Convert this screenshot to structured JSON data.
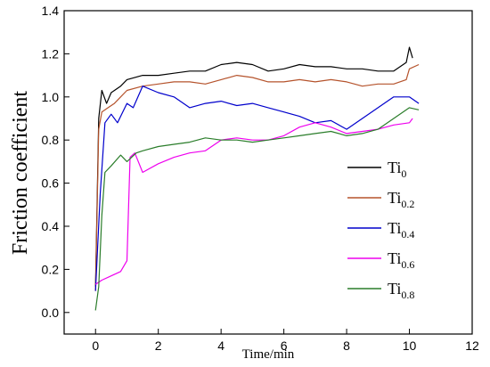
{
  "chart_data": {
    "type": "line",
    "xlabel": "Time/min",
    "ylabel": "Friction coefficient",
    "xlim": [
      -1,
      12
    ],
    "ylim": [
      -0.1,
      1.4
    ],
    "xticks": [
      0,
      2,
      4,
      6,
      8,
      10,
      12
    ],
    "yticks": [
      0.0,
      0.2,
      0.4,
      0.6,
      0.8,
      1.0,
      1.2,
      1.4
    ],
    "grid": false,
    "legend_position": "right",
    "series": [
      {
        "name": "Ti",
        "subscript": "0",
        "color": "#000000",
        "points": [
          [
            0,
            0.12
          ],
          [
            0.1,
            0.9
          ],
          [
            0.2,
            1.03
          ],
          [
            0.35,
            0.97
          ],
          [
            0.5,
            1.02
          ],
          [
            0.8,
            1.05
          ],
          [
            1.0,
            1.08
          ],
          [
            1.5,
            1.1
          ],
          [
            2.0,
            1.1
          ],
          [
            2.5,
            1.11
          ],
          [
            3.0,
            1.12
          ],
          [
            3.5,
            1.12
          ],
          [
            4.0,
            1.15
          ],
          [
            4.5,
            1.16
          ],
          [
            5.0,
            1.15
          ],
          [
            5.5,
            1.12
          ],
          [
            6.0,
            1.13
          ],
          [
            6.5,
            1.15
          ],
          [
            7.0,
            1.14
          ],
          [
            7.5,
            1.14
          ],
          [
            8.0,
            1.13
          ],
          [
            8.5,
            1.13
          ],
          [
            9.0,
            1.12
          ],
          [
            9.5,
            1.12
          ],
          [
            9.9,
            1.16
          ],
          [
            10.0,
            1.23
          ],
          [
            10.1,
            1.18
          ]
        ]
      },
      {
        "name": "Ti",
        "subscript": "0.2",
        "color": "#b5532c",
        "points": [
          [
            0,
            0.1
          ],
          [
            0.1,
            0.85
          ],
          [
            0.2,
            0.93
          ],
          [
            0.4,
            0.95
          ],
          [
            0.6,
            0.97
          ],
          [
            0.8,
            1.0
          ],
          [
            1.0,
            1.03
          ],
          [
            1.5,
            1.05
          ],
          [
            2.0,
            1.06
          ],
          [
            2.5,
            1.07
          ],
          [
            3.0,
            1.07
          ],
          [
            3.5,
            1.06
          ],
          [
            4.0,
            1.08
          ],
          [
            4.5,
            1.1
          ],
          [
            5.0,
            1.09
          ],
          [
            5.5,
            1.07
          ],
          [
            6.0,
            1.07
          ],
          [
            6.5,
            1.08
          ],
          [
            7.0,
            1.07
          ],
          [
            7.5,
            1.08
          ],
          [
            8.0,
            1.07
          ],
          [
            8.5,
            1.05
          ],
          [
            9.0,
            1.06
          ],
          [
            9.5,
            1.06
          ],
          [
            9.9,
            1.08
          ],
          [
            10.0,
            1.13
          ],
          [
            10.3,
            1.15
          ]
        ]
      },
      {
        "name": "Ti",
        "subscript": "0.4",
        "color": "#0000cc",
        "points": [
          [
            0,
            0.1
          ],
          [
            0.15,
            0.55
          ],
          [
            0.3,
            0.88
          ],
          [
            0.5,
            0.92
          ],
          [
            0.7,
            0.88
          ],
          [
            1.0,
            0.97
          ],
          [
            1.2,
            0.95
          ],
          [
            1.5,
            1.05
          ],
          [
            2.0,
            1.02
          ],
          [
            2.5,
            1.0
          ],
          [
            3.0,
            0.95
          ],
          [
            3.5,
            0.97
          ],
          [
            4.0,
            0.98
          ],
          [
            4.5,
            0.96
          ],
          [
            5.0,
            0.97
          ],
          [
            5.5,
            0.95
          ],
          [
            6.0,
            0.93
          ],
          [
            6.5,
            0.91
          ],
          [
            7.0,
            0.88
          ],
          [
            7.5,
            0.89
          ],
          [
            8.0,
            0.85
          ],
          [
            8.5,
            0.9
          ],
          [
            9.0,
            0.95
          ],
          [
            9.5,
            1.0
          ],
          [
            10.0,
            1.0
          ],
          [
            10.3,
            0.97
          ]
        ]
      },
      {
        "name": "Ti",
        "subscript": "0.6",
        "color": "#ee00ee",
        "points": [
          [
            0,
            0.13
          ],
          [
            0.2,
            0.15
          ],
          [
            0.5,
            0.17
          ],
          [
            0.8,
            0.19
          ],
          [
            1.0,
            0.24
          ],
          [
            1.1,
            0.72
          ],
          [
            1.25,
            0.74
          ],
          [
            1.5,
            0.65
          ],
          [
            2.0,
            0.69
          ],
          [
            2.5,
            0.72
          ],
          [
            3.0,
            0.74
          ],
          [
            3.5,
            0.75
          ],
          [
            4.0,
            0.8
          ],
          [
            4.5,
            0.81
          ],
          [
            5.0,
            0.8
          ],
          [
            5.5,
            0.8
          ],
          [
            6.0,
            0.82
          ],
          [
            6.5,
            0.86
          ],
          [
            7.0,
            0.88
          ],
          [
            7.5,
            0.86
          ],
          [
            8.0,
            0.83
          ],
          [
            8.5,
            0.84
          ],
          [
            9.0,
            0.85
          ],
          [
            9.5,
            0.87
          ],
          [
            10.0,
            0.88
          ],
          [
            10.1,
            0.9
          ]
        ]
      },
      {
        "name": "Ti",
        "subscript": "0.8",
        "color": "#2a7d2a",
        "points": [
          [
            0,
            0.01
          ],
          [
            0.1,
            0.12
          ],
          [
            0.2,
            0.45
          ],
          [
            0.3,
            0.65
          ],
          [
            0.5,
            0.68
          ],
          [
            0.8,
            0.73
          ],
          [
            1.0,
            0.7
          ],
          [
            1.3,
            0.74
          ],
          [
            1.5,
            0.75
          ],
          [
            2.0,
            0.77
          ],
          [
            2.5,
            0.78
          ],
          [
            3.0,
            0.79
          ],
          [
            3.5,
            0.81
          ],
          [
            4.0,
            0.8
          ],
          [
            4.5,
            0.8
          ],
          [
            5.0,
            0.79
          ],
          [
            5.5,
            0.8
          ],
          [
            6.0,
            0.81
          ],
          [
            6.5,
            0.82
          ],
          [
            7.0,
            0.83
          ],
          [
            7.5,
            0.84
          ],
          [
            8.0,
            0.82
          ],
          [
            8.5,
            0.83
          ],
          [
            9.0,
            0.85
          ],
          [
            9.5,
            0.9
          ],
          [
            10.0,
            0.95
          ],
          [
            10.3,
            0.94
          ]
        ]
      }
    ]
  }
}
